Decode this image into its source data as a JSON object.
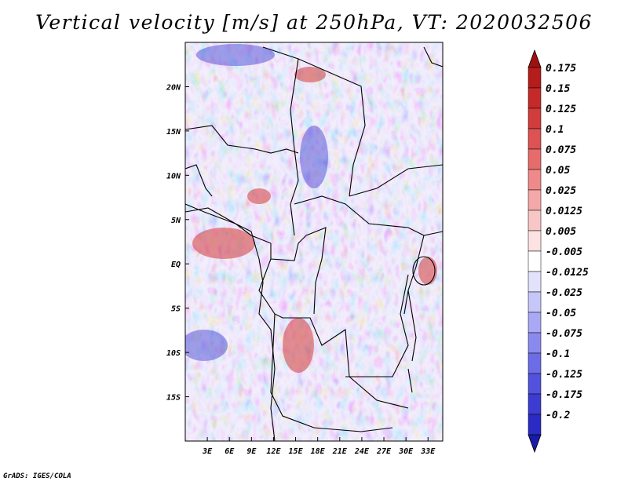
{
  "title": "Vertical velocity [m/s] at 250hPa, VT: 2020032506",
  "credit": "GrADS: IGES/COLA",
  "map": {
    "lon_range": [
      0,
      35
    ],
    "lat_range": [
      -20,
      25
    ],
    "lon_ticks": [
      {
        "value": 3,
        "label": "3E"
      },
      {
        "value": 6,
        "label": "6E"
      },
      {
        "value": 9,
        "label": "9E"
      },
      {
        "value": 12,
        "label": "12E"
      },
      {
        "value": 15,
        "label": "15E"
      },
      {
        "value": 18,
        "label": "18E"
      },
      {
        "value": 21,
        "label": "21E"
      },
      {
        "value": 24,
        "label": "24E"
      },
      {
        "value": 27,
        "label": "27E"
      },
      {
        "value": 30,
        "label": "30E"
      },
      {
        "value": 33,
        "label": "33E"
      }
    ],
    "lat_ticks": [
      {
        "value": 20,
        "label": "20N"
      },
      {
        "value": 15,
        "label": "15N"
      },
      {
        "value": 10,
        "label": "10N"
      },
      {
        "value": 5,
        "label": "5N"
      },
      {
        "value": 0,
        "label": "EQ"
      },
      {
        "value": -5,
        "label": "5S"
      },
      {
        "value": -10,
        "label": "10S"
      },
      {
        "value": -15,
        "label": "15S"
      }
    ]
  },
  "colorbar": {
    "levels": [
      {
        "label": "0.175",
        "color": "#b51c1c"
      },
      {
        "label": "0.15",
        "color": "#c42a2a"
      },
      {
        "label": "0.125",
        "color": "#d13c3c"
      },
      {
        "label": "0.1",
        "color": "#dd5252"
      },
      {
        "label": "0.075",
        "color": "#e66c6c"
      },
      {
        "label": "0.05",
        "color": "#ee8a8a"
      },
      {
        "label": "0.025",
        "color": "#f4a8a8"
      },
      {
        "label": "0.0125",
        "color": "#f8c6c6"
      },
      {
        "label": "0.005",
        "color": "#fce2e2"
      },
      {
        "label": "-0.005",
        "color": "#ffffff"
      },
      {
        "label": "-0.0125",
        "color": "#e2e2fc"
      },
      {
        "label": "-0.025",
        "color": "#c6c6f8"
      },
      {
        "label": "-0.05",
        "color": "#a8a8f4"
      },
      {
        "label": "-0.075",
        "color": "#8a8aee"
      },
      {
        "label": "-0.1",
        "color": "#6c6ce6"
      },
      {
        "label": "-0.125",
        "color": "#5252dd"
      },
      {
        "label": "-0.175",
        "color": "#3c3cd1"
      },
      {
        "label": "-0.2",
        "color": "#2a2ac4"
      }
    ],
    "top_arrow_color": "#a01010",
    "bottom_arrow_color": "#1a1aa8"
  }
}
